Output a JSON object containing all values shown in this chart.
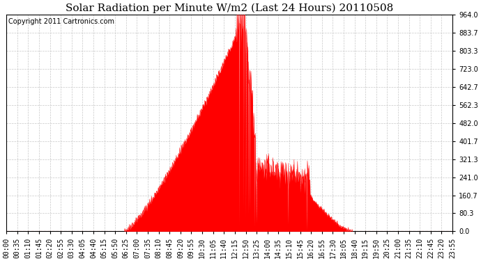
{
  "title": "Solar Radiation per Minute W/m2 (Last 24 Hours) 20110508",
  "copyright": "Copyright 2011 Cartronics.com",
  "y_ticks": [
    0.0,
    80.3,
    160.7,
    241.0,
    321.3,
    401.7,
    482.0,
    562.3,
    642.7,
    723.0,
    803.3,
    883.7,
    964.0
  ],
  "y_max": 964.0,
  "y_min": 0.0,
  "fill_color": "#FF0000",
  "line_color": "#FF0000",
  "dashed_line_color": "#FF0000",
  "grid_color": "#C8C8C8",
  "background_color": "#FFFFFF",
  "x_tick_labels": [
    "00:00",
    "00:35",
    "01:10",
    "01:45",
    "02:20",
    "02:55",
    "03:30",
    "04:05",
    "04:40",
    "05:15",
    "05:50",
    "06:25",
    "07:00",
    "07:35",
    "08:10",
    "08:45",
    "09:20",
    "09:55",
    "10:30",
    "11:05",
    "11:40",
    "12:15",
    "12:50",
    "13:25",
    "14:00",
    "14:35",
    "15:10",
    "15:45",
    "16:20",
    "16:55",
    "17:30",
    "18:05",
    "18:40",
    "19:15",
    "19:50",
    "20:25",
    "21:00",
    "21:35",
    "22:10",
    "22:45",
    "23:20",
    "23:55"
  ],
  "title_fontsize": 11,
  "copyright_fontsize": 7,
  "tick_fontsize": 7,
  "figsize": [
    6.9,
    3.75
  ],
  "dpi": 100
}
